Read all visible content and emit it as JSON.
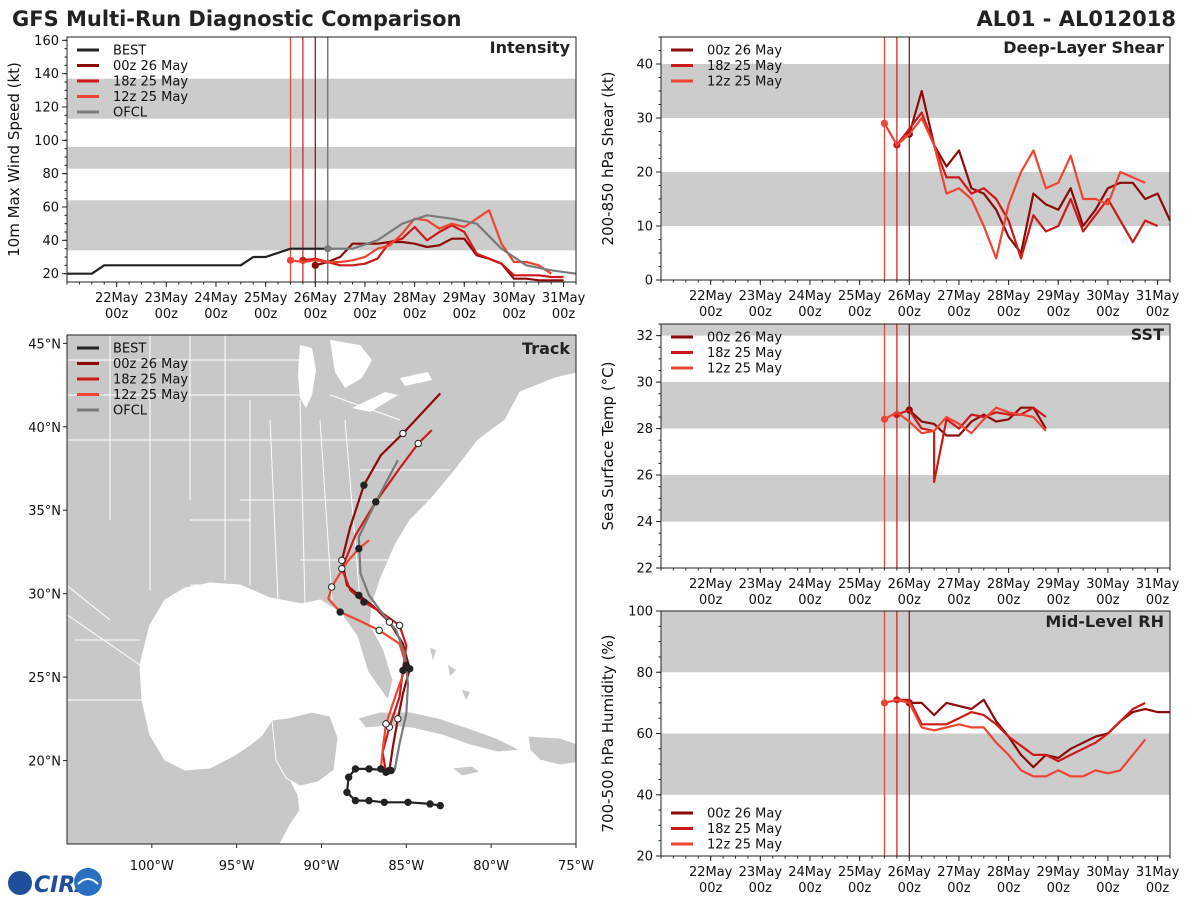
{
  "header": {
    "title": "GFS Multi-Run Diagnostic Comparison",
    "storm_id": "AL01 - AL012018"
  },
  "colors": {
    "best": "#222222",
    "run_00z": "#8b0a0a",
    "run_18z": "#cc1a1a",
    "run_12z": "#ee4433",
    "ofcl": "#7a7a7a",
    "band": "#cccccc",
    "land": "#c8c8c8",
    "border": "#ffffff"
  },
  "time_axis": {
    "days": [
      {
        "d": 22,
        "l1": "22May",
        "l2": "00z"
      },
      {
        "d": 23,
        "l1": "23May",
        "l2": "00z"
      },
      {
        "d": 24,
        "l1": "24May",
        "l2": "00z"
      },
      {
        "d": 25,
        "l1": "25May",
        "l2": "00z"
      },
      {
        "d": 26,
        "l1": "26May",
        "l2": "00z"
      },
      {
        "d": 27,
        "l1": "27May",
        "l2": "00z"
      },
      {
        "d": 28,
        "l1": "28May",
        "l2": "00z"
      },
      {
        "d": 29,
        "l1": "29May",
        "l2": "00z"
      },
      {
        "d": 30,
        "l1": "30May",
        "l2": "00z"
      },
      {
        "d": 31,
        "l1": "31May",
        "l2": "00z"
      }
    ],
    "init_times": [
      25.5,
      25.75,
      26.0
    ],
    "ofcl_time": 26.25
  },
  "chart_data": [
    {
      "id": "intensity",
      "type": "line",
      "title": "Intensity",
      "ylabel": "10m Max Wind Speed (kt)",
      "xlim": [
        21.0,
        31.25
      ],
      "ylim": [
        15,
        162
      ],
      "yticks": [
        20,
        40,
        60,
        80,
        100,
        120,
        140,
        160
      ],
      "bands": [
        [
          34,
          64
        ],
        [
          83,
          96
        ],
        [
          113,
          137
        ]
      ],
      "legend": [
        "BEST",
        "00z 26 May",
        "18z 25 May",
        "12z 25 May",
        "OFCL"
      ],
      "series": [
        {
          "name": "BEST",
          "color": "best",
          "x": [
            21.0,
            21.5,
            21.75,
            22.0,
            22.5,
            23.0,
            23.5,
            24.0,
            24.5,
            24.75,
            25.0,
            25.5,
            25.75,
            26.0,
            26.25
          ],
          "y": [
            20,
            20,
            25,
            25,
            25,
            25,
            25,
            25,
            25,
            30,
            30,
            35,
            35,
            35,
            35
          ]
        },
        {
          "name": "00z 26 May",
          "color": "run_00z",
          "marker": 26.0,
          "x": [
            26.0,
            26.25,
            26.5,
            26.75,
            27.0,
            27.25,
            27.5,
            27.75,
            28.0,
            28.25,
            28.5,
            28.75,
            29.0,
            29.25,
            29.5,
            29.75,
            30.0,
            30.25,
            30.5,
            30.75,
            31.0
          ],
          "y": [
            25,
            27,
            30,
            38,
            38,
            38,
            39,
            39,
            38,
            36,
            37,
            41,
            41,
            31,
            29,
            26,
            17,
            17,
            16,
            16,
            16
          ]
        },
        {
          "name": "18z 25 May",
          "color": "run_18z",
          "marker": 25.75,
          "x": [
            25.75,
            26.0,
            26.25,
            26.5,
            26.75,
            27.0,
            27.25,
            27.5,
            27.75,
            28.0,
            28.25,
            28.5,
            28.75,
            29.0,
            29.25,
            29.5,
            29.75,
            30.0,
            30.25,
            30.5,
            30.75,
            31.0
          ],
          "y": [
            28,
            29,
            27,
            25,
            25,
            26,
            29,
            39,
            41,
            48,
            40,
            45,
            49,
            45,
            32,
            29,
            26,
            19,
            19,
            19,
            18,
            18
          ]
        },
        {
          "name": "12z 25 May",
          "color": "run_12z",
          "marker": 25.5,
          "x": [
            25.5,
            25.75,
            26.0,
            26.25,
            26.5,
            26.75,
            27.0,
            27.25,
            27.5,
            27.75,
            28.0,
            28.25,
            28.5,
            28.75,
            29.0,
            29.25,
            29.5,
            29.75,
            30.0,
            30.25,
            30.5,
            30.75
          ],
          "y": [
            28,
            27,
            28,
            27,
            27,
            28,
            30,
            35,
            37,
            44,
            53,
            52,
            47,
            50,
            48,
            53,
            58,
            38,
            27,
            27,
            25,
            20
          ]
        },
        {
          "name": "OFCL",
          "color": "ofcl",
          "marker": 26.25,
          "x": [
            26.25,
            26.75,
            27.25,
            27.75,
            28.25,
            28.75,
            29.25,
            29.75,
            30.25,
            30.75,
            31.25
          ],
          "y": [
            35,
            35,
            40,
            50,
            55,
            53,
            50,
            35,
            25,
            22,
            20
          ]
        }
      ]
    },
    {
      "id": "shear",
      "type": "line",
      "title": "Deep-Layer Shear",
      "ylabel": "200-850 hPa Shear (kt)",
      "xlim": [
        21.0,
        31.25
      ],
      "ylim": [
        0,
        45
      ],
      "yticks": [
        0,
        10,
        20,
        30,
        40
      ],
      "bands": [
        [
          10,
          20
        ],
        [
          30,
          40
        ]
      ],
      "legend": [
        "00z 26 May",
        "18z 25 May",
        "12z 25 May"
      ],
      "series": [
        {
          "name": "00z 26 May",
          "color": "run_00z",
          "marker": 26.0,
          "x": [
            26.0,
            26.25,
            26.5,
            26.75,
            27.0,
            27.25,
            27.5,
            27.75,
            28.0,
            28.25,
            28.5,
            28.75,
            29.0,
            29.25,
            29.5,
            29.75,
            30.0,
            30.25,
            30.5,
            30.75,
            31.0,
            31.25
          ],
          "y": [
            27,
            35,
            25,
            21,
            24,
            17,
            16,
            13,
            8,
            5,
            16,
            14,
            13,
            17,
            10,
            13,
            17,
            18,
            18,
            15,
            16,
            11
          ]
        },
        {
          "name": "18z 25 May",
          "color": "run_18z",
          "marker": 25.75,
          "x": [
            25.75,
            26.0,
            26.25,
            26.5,
            26.75,
            27.0,
            27.25,
            27.5,
            27.75,
            28.0,
            28.25,
            28.5,
            28.75,
            29.0,
            29.25,
            29.5,
            29.75,
            30.0,
            30.25,
            30.5,
            30.75,
            31.0
          ],
          "y": [
            25,
            28,
            31,
            25,
            19,
            19,
            16,
            17,
            15,
            11,
            4,
            12,
            9,
            10,
            15,
            9,
            12,
            15,
            11,
            7,
            11,
            10
          ]
        },
        {
          "name": "12z 25 May",
          "color": "run_12z",
          "marker": 25.5,
          "x": [
            25.5,
            25.75,
            26.0,
            26.25,
            26.5,
            26.75,
            27.0,
            27.25,
            27.5,
            27.75,
            28.0,
            28.25,
            28.5,
            28.75,
            29.0,
            29.25,
            29.5,
            29.75,
            30.0,
            30.25,
            30.5,
            30.75
          ],
          "y": [
            29,
            25,
            27,
            30,
            25,
            16,
            17,
            15,
            10,
            4,
            14,
            20,
            24,
            17,
            18,
            23,
            15,
            15,
            14,
            20,
            19,
            18
          ]
        }
      ]
    },
    {
      "id": "sst",
      "type": "line",
      "title": "SST",
      "ylabel": "Sea Surface Temp (°C)",
      "xlim": [
        21.0,
        31.25
      ],
      "ylim": [
        22,
        32.5
      ],
      "yticks": [
        22,
        24,
        26,
        28,
        30,
        32
      ],
      "bands": [
        [
          24,
          26
        ],
        [
          28,
          30
        ],
        [
          32,
          32.5
        ]
      ],
      "legend": [
        "00z 26 May",
        "18z 25 May",
        "12z 25 May"
      ],
      "series": [
        {
          "name": "00z 26 May",
          "color": "run_00z",
          "marker": 26.0,
          "x": [
            26.0,
            26.25,
            26.5,
            26.75,
            27.0,
            27.25,
            27.5,
            27.75,
            28.0,
            28.25,
            28.5,
            28.75
          ],
          "y": [
            28.8,
            28.3,
            28.2,
            27.7,
            27.7,
            28.3,
            28.6,
            28.3,
            28.4,
            28.9,
            28.9,
            28.0
          ]
        },
        {
          "name": "18z 25 May",
          "color": "run_18z",
          "marker": 25.75,
          "x": [
            25.75,
            26.0,
            26.25,
            26.5,
            26.5,
            26.75,
            27.0,
            27.25,
            27.5,
            27.75,
            28.0,
            28.25,
            28.5,
            28.75
          ],
          "y": [
            28.6,
            28.8,
            28.0,
            27.9,
            25.7,
            28.4,
            28.0,
            28.6,
            28.5,
            28.7,
            28.6,
            28.6,
            28.9,
            28.5
          ]
        },
        {
          "name": "12z 25 May",
          "color": "run_12z",
          "marker": 25.5,
          "x": [
            25.5,
            25.75,
            26.0,
            26.25,
            26.5,
            26.75,
            27.0,
            27.25,
            27.5,
            27.75,
            28.0,
            28.25,
            28.5,
            28.75
          ],
          "y": [
            28.4,
            28.7,
            28.3,
            27.8,
            27.9,
            28.5,
            28.2,
            27.8,
            28.4,
            28.9,
            28.7,
            28.6,
            28.5,
            27.9
          ]
        }
      ]
    },
    {
      "id": "rh",
      "type": "line",
      "title": "Mid-Level RH",
      "ylabel": "700-500 hPa Humidity (%)",
      "xlim": [
        21.0,
        31.25
      ],
      "ylim": [
        20,
        100
      ],
      "yticks": [
        20,
        40,
        60,
        80,
        100
      ],
      "bands": [
        [
          40,
          60
        ],
        [
          80,
          100
        ]
      ],
      "legend": [
        "00z 26 May",
        "18z 25 May",
        "12z 25 May"
      ],
      "series": [
        {
          "name": "00z 26 May",
          "color": "run_00z",
          "marker": 26.0,
          "x": [
            26.0,
            26.25,
            26.5,
            26.75,
            27.0,
            27.25,
            27.5,
            27.75,
            28.0,
            28.25,
            28.5,
            28.75,
            29.0,
            29.25,
            29.5,
            29.75,
            30.0,
            30.25,
            30.5,
            30.75,
            31.0,
            31.25
          ],
          "y": [
            70,
            70,
            66,
            70,
            69,
            68,
            71,
            64,
            59,
            53,
            49,
            53,
            52,
            55,
            57,
            59,
            60,
            64,
            67,
            68,
            67,
            67
          ]
        },
        {
          "name": "18z 25 May",
          "color": "run_18z",
          "marker": 25.75,
          "x": [
            25.75,
            26.0,
            26.25,
            26.5,
            26.75,
            27.0,
            27.25,
            27.5,
            27.75,
            28.0,
            28.25,
            28.5,
            28.75,
            29.0,
            29.25,
            29.5,
            29.75,
            30.0,
            30.25,
            30.5,
            30.75
          ],
          "y": [
            71,
            71,
            63,
            63,
            63,
            65,
            67,
            66,
            63,
            59,
            56,
            53,
            53,
            51,
            53,
            55,
            57,
            60,
            64,
            68,
            70
          ]
        },
        {
          "name": "12z 25 May",
          "color": "run_12z",
          "marker": 25.5,
          "x": [
            25.5,
            25.75,
            26.0,
            26.25,
            26.5,
            26.75,
            27.0,
            27.25,
            27.5,
            27.75,
            28.0,
            28.25,
            28.5,
            28.75,
            29.0,
            29.25,
            29.5,
            29.75,
            30.0,
            30.25,
            30.5,
            30.75
          ],
          "y": [
            70,
            71,
            70,
            62,
            61,
            62,
            63,
            62,
            62,
            57,
            53,
            48,
            46,
            46,
            48,
            46,
            46,
            48,
            47,
            48,
            53,
            58
          ]
        }
      ]
    },
    {
      "id": "track",
      "type": "scatter",
      "title": "Track",
      "xlim": [
        -105,
        -75
      ],
      "ylim": [
        15,
        45.5
      ],
      "xticks": [
        -100,
        -95,
        -90,
        -85,
        -80,
        -75
      ],
      "xtick_labels": [
        "100°W",
        "95°W",
        "90°W",
        "85°W",
        "80°W",
        "75°W"
      ],
      "yticks": [
        20,
        25,
        30,
        35,
        40,
        45
      ],
      "ytick_labels": [
        "20°N",
        "25°N",
        "30°N",
        "35°N",
        "40°N",
        "45°N"
      ],
      "legend": [
        "BEST",
        "00z 26 May",
        "18z 25 May",
        "12z 25 May",
        "OFCL"
      ],
      "series": [
        {
          "name": "BEST",
          "color": "best",
          "lon": [
            -83.0,
            -83.6,
            -84.9,
            -86.3,
            -87.2,
            -88.0,
            -88.5,
            -88.4,
            -88.0,
            -87.2,
            -86.0,
            -85.9
          ],
          "lat": [
            17.3,
            17.4,
            17.5,
            17.5,
            17.6,
            17.6,
            18.1,
            19.0,
            19.5,
            19.5,
            19.4,
            19.4
          ]
        },
        {
          "name": "00z 26 May",
          "color": "run_00z",
          "lon": [
            -86.0,
            -85.8,
            -85.5,
            -85.2,
            -84.8,
            -85.2,
            -86.0,
            -87.0,
            -87.8,
            -88.5,
            -88.8,
            -88.3,
            -87.5,
            -86.5,
            -85.2,
            -83.0
          ],
          "lat": [
            19.4,
            20.8,
            22.5,
            24.0,
            25.5,
            27.0,
            28.3,
            29.3,
            29.9,
            30.5,
            32.0,
            34.0,
            36.5,
            38.3,
            39.6,
            42.0
          ]
        },
        {
          "name": "18z 25 May",
          "color": "run_18z",
          "lon": [
            -86.2,
            -86.4,
            -86.0,
            -85.4,
            -85.2,
            -85.0,
            -85.4,
            -86.5,
            -87.5,
            -88.3,
            -88.8,
            -88.0,
            -86.8,
            -85.4,
            -84.3,
            -83.5
          ],
          "lat": [
            19.3,
            20.5,
            22.0,
            23.8,
            25.4,
            26.9,
            28.1,
            28.9,
            29.5,
            30.2,
            31.5,
            33.5,
            35.5,
            37.5,
            39.0,
            39.8
          ]
        },
        {
          "name": "12z 25 May",
          "color": "run_12z",
          "lon": [
            -86.5,
            -86.4,
            -86.2,
            -85.6,
            -85.0,
            -85.4,
            -86.6,
            -87.8,
            -88.9,
            -89.6,
            -89.4,
            -88.5,
            -87.8,
            -87.2
          ],
          "lat": [
            19.5,
            20.6,
            22.2,
            24.0,
            25.7,
            27.0,
            27.8,
            28.4,
            28.9,
            29.7,
            30.4,
            31.9,
            32.7,
            33.2
          ]
        },
        {
          "name": "OFCL",
          "color": "ofcl",
          "lon": [
            -85.7,
            -85.4,
            -85.0,
            -84.9,
            -85.1,
            -85.6,
            -86.4,
            -87.2,
            -87.7,
            -87.8,
            -86.8,
            -85.5
          ],
          "lat": [
            19.4,
            21.0,
            22.8,
            24.6,
            26.4,
            27.8,
            28.8,
            29.9,
            31.2,
            33.4,
            35.5,
            38.0
          ]
        }
      ]
    }
  ],
  "logo": {
    "text": "CIRA"
  }
}
